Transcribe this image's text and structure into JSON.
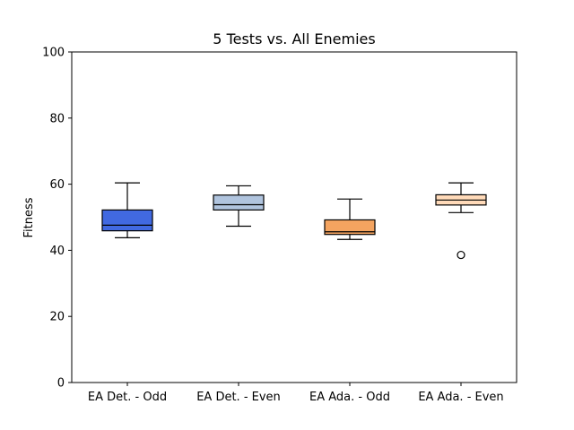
{
  "chart_data": {
    "type": "box",
    "title": "5 Tests vs. All Enemies",
    "xlabel": "",
    "ylabel": "Fitness",
    "ylim": [
      0,
      100
    ],
    "yticks": [
      0,
      20,
      40,
      60,
      80,
      100
    ],
    "grid": false,
    "categories": [
      "EA Det. - Odd",
      "EA Det. - Even",
      "EA Ada. - Odd",
      "EA Ada. - Even"
    ],
    "boxes": [
      {
        "label": "EA Det. - Odd",
        "color": "#4169e1",
        "whisker_low": 43.8,
        "q1": 45.9,
        "median": 47.6,
        "q3": 52.2,
        "whisker_high": 60.4,
        "outliers": []
      },
      {
        "label": "EA Det. - Even",
        "color": "#b0c4de",
        "whisker_low": 47.3,
        "q1": 52.2,
        "median": 53.8,
        "q3": 56.7,
        "whisker_high": 59.5,
        "outliers": []
      },
      {
        "label": "EA Ada. - Odd",
        "color": "#f4a460",
        "whisker_low": 43.3,
        "q1": 44.8,
        "median": 45.6,
        "q3": 49.2,
        "whisker_high": 55.5,
        "outliers": []
      },
      {
        "label": "EA Ada. - Even",
        "color": "#ffdab9",
        "whisker_low": 51.4,
        "q1": 53.7,
        "median": 55.2,
        "q3": 56.8,
        "whisker_high": 60.4,
        "outliers": [
          38.6
        ]
      }
    ]
  }
}
